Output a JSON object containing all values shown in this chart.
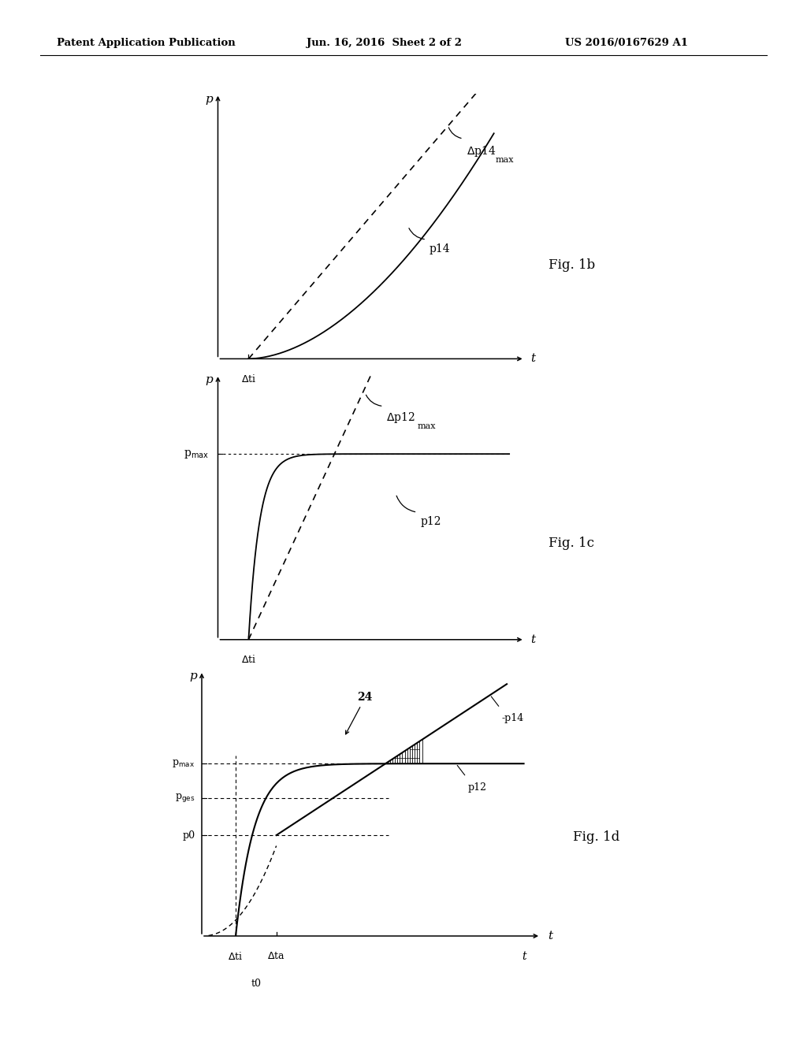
{
  "bg_color": "#ffffff",
  "text_color": "#000000",
  "header_left": "Patent Application Publication",
  "header_mid": "Jun. 16, 2016  Sheet 2 of 2",
  "header_right": "US 2016/0167629 A1"
}
